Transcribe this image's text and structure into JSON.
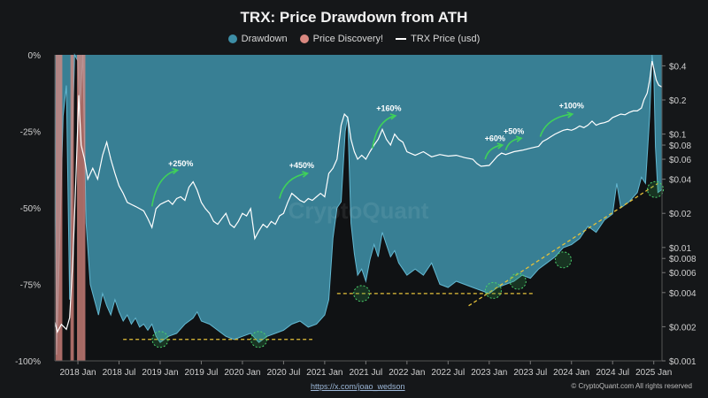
{
  "chart_data": {
    "type": "area",
    "title": "TRX: Price Drawdown from ATH",
    "legend": [
      {
        "name": "Drawdown",
        "color": "#3d8ea6",
        "kind": "dot"
      },
      {
        "name": "Price Discovery!",
        "color": "#d98880",
        "kind": "dot"
      },
      {
        "name": "TRX Price (usd)",
        "color": "#ffffff",
        "kind": "line"
      }
    ],
    "x_ticks": [
      "2018 Jan",
      "2018 Jul",
      "2019 Jan",
      "2019 Jul",
      "2020 Jan",
      "2020 Jul",
      "2021 Jan",
      "2021 Jul",
      "2022 Jan",
      "2022 Jul",
      "2023 Jan",
      "2023 Jul",
      "2024 Jan",
      "2024 Jul",
      "2025 Jan"
    ],
    "x_range": [
      2017.72,
      2025.1
    ],
    "y_left": {
      "ticks": [
        "0%",
        "-25%",
        "-50%",
        "-75%",
        "-100%"
      ],
      "values": [
        0,
        -25,
        -50,
        -75,
        -100
      ],
      "range": [
        -100,
        0
      ]
    },
    "y_right": {
      "scale": "log",
      "ticks": [
        "$0.4",
        "$0.2",
        "$0.1",
        "$0.08",
        "$0.06",
        "$0.04",
        "$0.02",
        "$0.01",
        "$0.008",
        "$0.006",
        "$0.004",
        "$0.002",
        "$0.001"
      ],
      "values": [
        0.4,
        0.2,
        0.1,
        0.08,
        0.06,
        0.04,
        0.02,
        0.01,
        0.008,
        0.006,
        0.004,
        0.002,
        0.001
      ],
      "range": [
        0.001,
        0.5
      ]
    },
    "drawdown_series": {
      "name": "Drawdown",
      "points": [
        [
          2017.72,
          -5
        ],
        [
          2017.74,
          -98
        ],
        [
          2017.78,
          -60
        ],
        [
          2017.82,
          -20
        ],
        [
          2017.86,
          -10
        ],
        [
          2017.9,
          -80
        ],
        [
          2017.93,
          -30
        ],
        [
          2017.96,
          0
        ],
        [
          2018.0,
          -2
        ],
        [
          2018.02,
          -20
        ],
        [
          2018.06,
          0
        ],
        [
          2018.1,
          -55
        ],
        [
          2018.15,
          -75
        ],
        [
          2018.2,
          -80
        ],
        [
          2018.25,
          -85
        ],
        [
          2018.3,
          -78
        ],
        [
          2018.35,
          -82
        ],
        [
          2018.4,
          -85
        ],
        [
          2018.45,
          -80
        ],
        [
          2018.5,
          -84
        ],
        [
          2018.55,
          -87
        ],
        [
          2018.6,
          -85
        ],
        [
          2018.65,
          -88
        ],
        [
          2018.7,
          -86
        ],
        [
          2018.75,
          -89
        ],
        [
          2018.8,
          -88
        ],
        [
          2018.85,
          -90
        ],
        [
          2018.9,
          -88
        ],
        [
          2018.95,
          -92
        ],
        [
          2019.0,
          -94
        ],
        [
          2019.05,
          -93
        ],
        [
          2019.1,
          -92
        ],
        [
          2019.2,
          -91
        ],
        [
          2019.3,
          -88
        ],
        [
          2019.4,
          -86
        ],
        [
          2019.45,
          -84
        ],
        [
          2019.5,
          -87
        ],
        [
          2019.6,
          -88
        ],
        [
          2019.7,
          -90
        ],
        [
          2019.8,
          -92
        ],
        [
          2019.9,
          -93
        ],
        [
          2020.0,
          -92
        ],
        [
          2020.1,
          -91
        ],
        [
          2020.2,
          -94
        ],
        [
          2020.3,
          -92
        ],
        [
          2020.4,
          -91
        ],
        [
          2020.5,
          -90
        ],
        [
          2020.6,
          -88
        ],
        [
          2020.7,
          -87
        ],
        [
          2020.8,
          -89
        ],
        [
          2020.9,
          -88
        ],
        [
          2021.0,
          -85
        ],
        [
          2021.05,
          -80
        ],
        [
          2021.1,
          -60
        ],
        [
          2021.15,
          -50
        ],
        [
          2021.2,
          -48
        ],
        [
          2021.25,
          -25
        ],
        [
          2021.28,
          -20
        ],
        [
          2021.32,
          -55
        ],
        [
          2021.36,
          -65
        ],
        [
          2021.4,
          -72
        ],
        [
          2021.45,
          -70
        ],
        [
          2021.5,
          -74
        ],
        [
          2021.55,
          -67
        ],
        [
          2021.6,
          -62
        ],
        [
          2021.65,
          -66
        ],
        [
          2021.7,
          -58
        ],
        [
          2021.75,
          -62
        ],
        [
          2021.8,
          -66
        ],
        [
          2021.85,
          -64
        ],
        [
          2021.9,
          -68
        ],
        [
          2021.95,
          -70
        ],
        [
          2022.0,
          -72
        ],
        [
          2022.1,
          -70
        ],
        [
          2022.2,
          -72
        ],
        [
          2022.3,
          -68
        ],
        [
          2022.4,
          -75
        ],
        [
          2022.5,
          -76
        ],
        [
          2022.6,
          -74
        ],
        [
          2022.7,
          -75
        ],
        [
          2022.8,
          -76
        ],
        [
          2022.9,
          -77
        ],
        [
          2023.0,
          -78
        ],
        [
          2023.1,
          -76
        ],
        [
          2023.2,
          -75
        ],
        [
          2023.3,
          -74
        ],
        [
          2023.4,
          -72
        ],
        [
          2023.5,
          -73
        ],
        [
          2023.6,
          -70
        ],
        [
          2023.7,
          -68
        ],
        [
          2023.8,
          -66
        ],
        [
          2023.9,
          -63
        ],
        [
          2024.0,
          -62
        ],
        [
          2024.1,
          -60
        ],
        [
          2024.2,
          -56
        ],
        [
          2024.3,
          -58
        ],
        [
          2024.4,
          -54
        ],
        [
          2024.5,
          -52
        ],
        [
          2024.55,
          -42
        ],
        [
          2024.6,
          -50
        ],
        [
          2024.7,
          -48
        ],
        [
          2024.8,
          -45
        ],
        [
          2024.85,
          -40
        ],
        [
          2024.9,
          -42
        ],
        [
          2024.95,
          -20
        ],
        [
          2024.98,
          0
        ],
        [
          2025.0,
          -5
        ],
        [
          2025.02,
          -30
        ],
        [
          2025.05,
          -45
        ],
        [
          2025.1,
          -44
        ]
      ]
    },
    "price_discovery_series": {
      "name": "Price Discovery!",
      "x": [
        2017.74,
        2017.76,
        2017.78,
        2017.8,
        2017.92,
        2017.94,
        2018.0,
        2018.02,
        2018.04,
        2018.06,
        2018.08
      ]
    },
    "price_series": {
      "name": "TRX Price (usd)",
      "unit": "usd",
      "points": [
        [
          2017.72,
          0.0022
        ],
        [
          2017.75,
          0.0018
        ],
        [
          2017.8,
          0.0021
        ],
        [
          2017.86,
          0.0019
        ],
        [
          2017.9,
          0.0024
        ],
        [
          2017.94,
          0.008
        ],
        [
          2017.98,
          0.05
        ],
        [
          2018.01,
          0.22
        ],
        [
          2018.04,
          0.08
        ],
        [
          2018.08,
          0.06
        ],
        [
          2018.12,
          0.04
        ],
        [
          2018.18,
          0.05
        ],
        [
          2018.24,
          0.04
        ],
        [
          2018.3,
          0.065
        ],
        [
          2018.35,
          0.085
        ],
        [
          2018.4,
          0.06
        ],
        [
          2018.45,
          0.045
        ],
        [
          2018.5,
          0.035
        ],
        [
          2018.55,
          0.03
        ],
        [
          2018.6,
          0.025
        ],
        [
          2018.65,
          0.024
        ],
        [
          2018.7,
          0.023
        ],
        [
          2018.75,
          0.022
        ],
        [
          2018.8,
          0.021
        ],
        [
          2018.85,
          0.018
        ],
        [
          2018.9,
          0.015
        ],
        [
          2018.95,
          0.022
        ],
        [
          2019.0,
          0.024
        ],
        [
          2019.05,
          0.025
        ],
        [
          2019.1,
          0.026
        ],
        [
          2019.15,
          0.024
        ],
        [
          2019.2,
          0.027
        ],
        [
          2019.25,
          0.028
        ],
        [
          2019.3,
          0.026
        ],
        [
          2019.35,
          0.034
        ],
        [
          2019.4,
          0.038
        ],
        [
          2019.45,
          0.032
        ],
        [
          2019.5,
          0.025
        ],
        [
          2019.55,
          0.022
        ],
        [
          2019.6,
          0.02
        ],
        [
          2019.65,
          0.017
        ],
        [
          2019.7,
          0.016
        ],
        [
          2019.75,
          0.018
        ],
        [
          2019.8,
          0.02
        ],
        [
          2019.85,
          0.016
        ],
        [
          2019.9,
          0.015
        ],
        [
          2019.95,
          0.017
        ],
        [
          2020.0,
          0.02
        ],
        [
          2020.05,
          0.019
        ],
        [
          2020.1,
          0.022
        ],
        [
          2020.15,
          0.012
        ],
        [
          2020.2,
          0.014
        ],
        [
          2020.25,
          0.016
        ],
        [
          2020.3,
          0.015
        ],
        [
          2020.35,
          0.017
        ],
        [
          2020.4,
          0.016
        ],
        [
          2020.45,
          0.019
        ],
        [
          2020.5,
          0.02
        ],
        [
          2020.55,
          0.025
        ],
        [
          2020.6,
          0.03
        ],
        [
          2020.65,
          0.028
        ],
        [
          2020.7,
          0.026
        ],
        [
          2020.75,
          0.025
        ],
        [
          2020.8,
          0.027
        ],
        [
          2020.85,
          0.026
        ],
        [
          2020.9,
          0.028
        ],
        [
          2020.95,
          0.03
        ],
        [
          2021.0,
          0.028
        ],
        [
          2021.05,
          0.045
        ],
        [
          2021.1,
          0.05
        ],
        [
          2021.15,
          0.06
        ],
        [
          2021.2,
          0.12
        ],
        [
          2021.24,
          0.15
        ],
        [
          2021.28,
          0.14
        ],
        [
          2021.32,
          0.09
        ],
        [
          2021.36,
          0.07
        ],
        [
          2021.4,
          0.06
        ],
        [
          2021.45,
          0.065
        ],
        [
          2021.5,
          0.06
        ],
        [
          2021.55,
          0.07
        ],
        [
          2021.6,
          0.08
        ],
        [
          2021.65,
          0.09
        ],
        [
          2021.7,
          0.11
        ],
        [
          2021.75,
          0.09
        ],
        [
          2021.8,
          0.08
        ],
        [
          2021.85,
          0.1
        ],
        [
          2021.9,
          0.09
        ],
        [
          2021.95,
          0.085
        ],
        [
          2022.0,
          0.07
        ],
        [
          2022.1,
          0.065
        ],
        [
          2022.2,
          0.07
        ],
        [
          2022.3,
          0.063
        ],
        [
          2022.4,
          0.066
        ],
        [
          2022.5,
          0.064
        ],
        [
          2022.6,
          0.065
        ],
        [
          2022.7,
          0.062
        ],
        [
          2022.8,
          0.06
        ],
        [
          2022.85,
          0.055
        ],
        [
          2022.9,
          0.052
        ],
        [
          2023.0,
          0.053
        ],
        [
          2023.05,
          0.058
        ],
        [
          2023.1,
          0.064
        ],
        [
          2023.15,
          0.068
        ],
        [
          2023.2,
          0.066
        ],
        [
          2023.3,
          0.07
        ],
        [
          2023.4,
          0.072
        ],
        [
          2023.5,
          0.075
        ],
        [
          2023.6,
          0.078
        ],
        [
          2023.65,
          0.086
        ],
        [
          2023.7,
          0.09
        ],
        [
          2023.75,
          0.095
        ],
        [
          2023.8,
          0.1
        ],
        [
          2023.85,
          0.104
        ],
        [
          2023.9,
          0.108
        ],
        [
          2023.95,
          0.11
        ],
        [
          2024.0,
          0.108
        ],
        [
          2024.05,
          0.112
        ],
        [
          2024.1,
          0.118
        ],
        [
          2024.15,
          0.114
        ],
        [
          2024.2,
          0.12
        ],
        [
          2024.25,
          0.13
        ],
        [
          2024.3,
          0.12
        ],
        [
          2024.35,
          0.124
        ],
        [
          2024.4,
          0.126
        ],
        [
          2024.45,
          0.13
        ],
        [
          2024.5,
          0.14
        ],
        [
          2024.55,
          0.145
        ],
        [
          2024.6,
          0.15
        ],
        [
          2024.65,
          0.148
        ],
        [
          2024.7,
          0.155
        ],
        [
          2024.75,
          0.16
        ],
        [
          2024.8,
          0.16
        ],
        [
          2024.85,
          0.17
        ],
        [
          2024.88,
          0.2
        ],
        [
          2024.92,
          0.23
        ],
        [
          2024.95,
          0.3
        ],
        [
          2024.98,
          0.44
        ],
        [
          2025.0,
          0.38
        ],
        [
          2025.03,
          0.3
        ],
        [
          2025.06,
          0.27
        ],
        [
          2025.1,
          0.26
        ]
      ]
    },
    "annotations": [
      {
        "text": "+250%",
        "x": 2019.25,
        "price": 0.052
      },
      {
        "text": "+450%",
        "x": 2020.72,
        "price": 0.05
      },
      {
        "text": "+160%",
        "x": 2021.78,
        "price": 0.16
      },
      {
        "text": "+60%",
        "x": 2023.07,
        "price": 0.087
      },
      {
        "text": "+50%",
        "x": 2023.3,
        "price": 0.1
      },
      {
        "text": "+100%",
        "x": 2024.0,
        "price": 0.168
      }
    ],
    "gain_arrows": [
      {
        "x": [
          2018.9,
          2019.2
        ],
        "price": [
          0.023,
          0.048
        ]
      },
      {
        "x": [
          2020.45,
          2020.78
        ],
        "price": [
          0.027,
          0.045
        ]
      },
      {
        "x": [
          2021.58,
          2021.85
        ],
        "price": [
          0.075,
          0.145
        ]
      },
      {
        "x": [
          2022.95,
          2023.15
        ],
        "price": [
          0.06,
          0.08
        ]
      },
      {
        "x": [
          2023.2,
          2023.38
        ],
        "price": [
          0.072,
          0.092
        ]
      },
      {
        "x": [
          2023.62,
          2024.0
        ],
        "price": [
          0.095,
          0.15
        ]
      }
    ],
    "support_lines": [
      {
        "x": [
          2018.55,
          2020.85
        ],
        "drawdown": [
          -93,
          -93
        ]
      },
      {
        "x": [
          2021.15,
          2023.55
        ],
        "drawdown": [
          -78,
          -78
        ]
      },
      {
        "x": [
          2022.75,
          2025.05
        ],
        "drawdown": [
          -82,
          -42
        ]
      }
    ],
    "support_circles": [
      {
        "x": 2019.0,
        "drawdown": -93
      },
      {
        "x": 2020.2,
        "drawdown": -93
      },
      {
        "x": 2021.45,
        "drawdown": -78
      },
      {
        "x": 2023.05,
        "drawdown": -77
      },
      {
        "x": 2023.35,
        "drawdown": -74
      },
      {
        "x": 2023.9,
        "drawdown": -67
      },
      {
        "x": 2025.02,
        "drawdown": -44
      }
    ],
    "watermark": "CryptoQuant",
    "grid": false
  },
  "footer": {
    "link": "https://x.com/joao_wedson",
    "copyright": "© CryptoQuant.com All rights reserved"
  }
}
